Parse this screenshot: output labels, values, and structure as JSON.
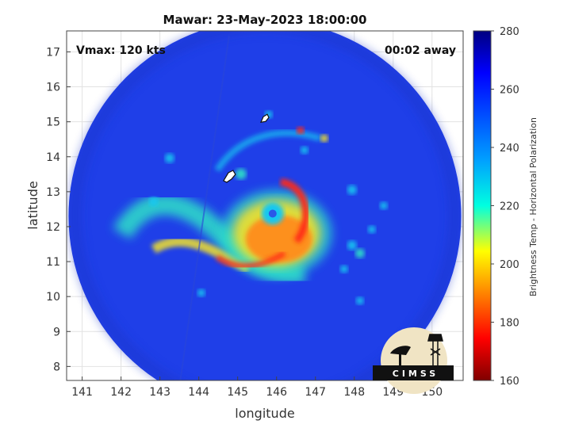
{
  "chart_data": {
    "type": "heatmap",
    "title": "Mawar: 23-May-2023 18:00:00",
    "xlabel": "longitude",
    "ylabel": "latitude",
    "xlim": [
      140.6,
      150.8
    ],
    "ylim": [
      7.6,
      17.6
    ],
    "xticks": [
      141,
      142,
      143,
      144,
      145,
      146,
      147,
      148,
      149,
      150
    ],
    "yticks": [
      8,
      9,
      10,
      11,
      12,
      13,
      14,
      15,
      16,
      17
    ],
    "grid": true,
    "colorbar": {
      "label": "Brightness Temp - Horizontal Polarization",
      "min": 160,
      "max": 280,
      "ticks": [
        160,
        180,
        200,
        220,
        240,
        260,
        280
      ],
      "colormap": "jet"
    },
    "annotations": {
      "vmax": "Vmax: 120 kts",
      "time_offset": "00:02 away"
    },
    "storm": {
      "center_lon": 145.9,
      "center_lat": 12.6,
      "swath_center_lon": 145.7,
      "swath_center_lat": 12.3,
      "swath_radius_deg": 5.05
    },
    "logo": "CIMSS"
  },
  "colors": {
    "background_cold": "#1e3fe0",
    "outline": "#111111"
  }
}
